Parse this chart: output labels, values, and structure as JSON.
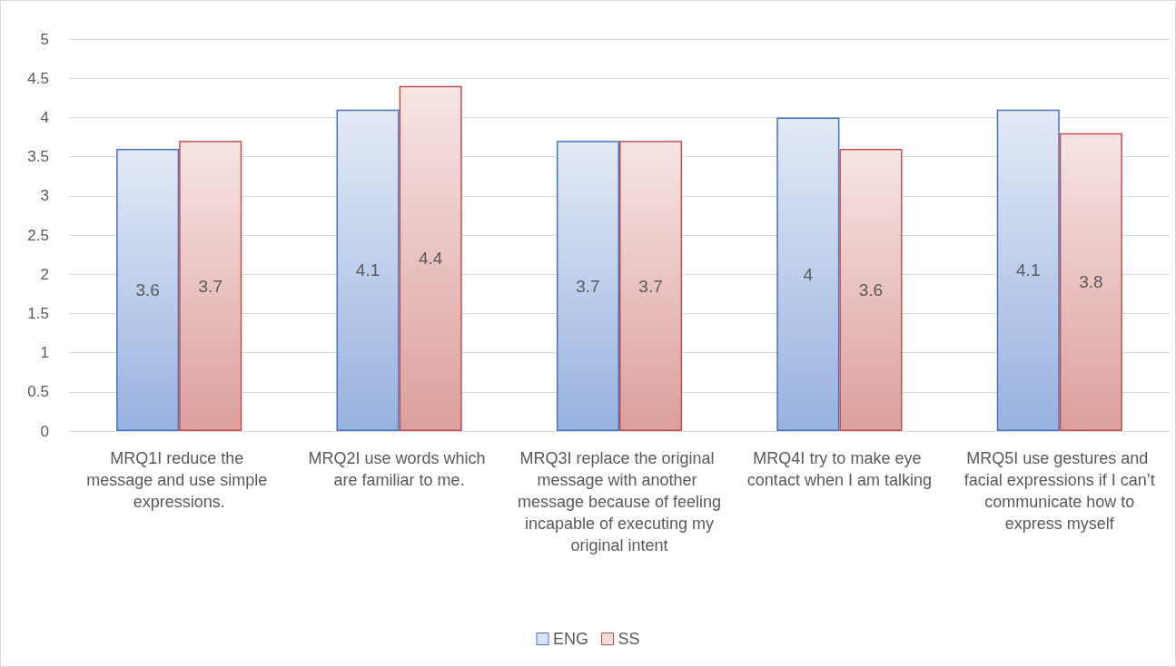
{
  "chart_data": {
    "type": "bar",
    "categories": [
      "MRQ1I reduce the message and use simple expressions.",
      "MRQ2I use words which are familiar to me.",
      "MRQ3I replace the original message with another message because of feeling incapable of executing my original intent",
      "MRQ4I try to make eye contact when I am talking",
      "MRQ5I use gestures and facial expressions if I can’t communicate how to express myself"
    ],
    "series": [
      {
        "name": "ENG",
        "color": "#4472c4",
        "values": [
          3.6,
          4.1,
          3.7,
          4,
          4.1
        ]
      },
      {
        "name": "SS",
        "color": "#c0504d",
        "values": [
          3.7,
          4.4,
          3.7,
          3.6,
          3.8
        ]
      }
    ],
    "ylim": [
      0,
      5
    ],
    "yticks": [
      0,
      0.5,
      1,
      1.5,
      2,
      2.5,
      3,
      3.5,
      4,
      4.5,
      5
    ],
    "grid": "y",
    "legend": "bottom",
    "data_labels": true
  }
}
